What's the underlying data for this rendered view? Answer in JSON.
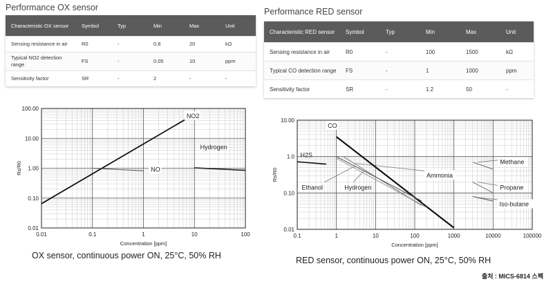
{
  "ox_section": {
    "title": "Performance OX sensor",
    "columns": [
      "Characteristic OX sensor",
      "Symbol",
      "Typ",
      "Min",
      "Max",
      "Unit"
    ],
    "rows": [
      [
        "Sensing resistance in air",
        "R0",
        "-",
        "0.8",
        "20",
        "kΩ"
      ],
      [
        "Typical NO2 detection range",
        "FS",
        "-",
        "0.05",
        "10",
        "ppm"
      ],
      [
        "Sensitivity factor",
        "SR",
        "-",
        "2",
        "-",
        "-"
      ]
    ]
  },
  "red_section": {
    "title": "Performance RED sensor",
    "columns": [
      "Characteristic RED sensor",
      "Symbol",
      "Typ",
      "Min",
      "Max",
      "Unit"
    ],
    "rows": [
      [
        "Sensing resistance in air",
        "R0",
        "-",
        "100",
        "1500",
        "kΩ"
      ],
      [
        "Typical CO detection range",
        "FS",
        "-",
        "1",
        "1000",
        "ppm"
      ],
      [
        "Sensitivity factor",
        "SR",
        "-",
        "1.2",
        "50",
        "-"
      ]
    ]
  },
  "chart_data": [
    {
      "type": "line",
      "title": "OX sensor, continuous power ON, 25°C, 50% RH",
      "xlabel": "Concentration [ppm]",
      "ylabel": "Rs/R0",
      "xscale": "log",
      "yscale": "log",
      "xlim": [
        0.01,
        100
      ],
      "ylim": [
        0.01,
        100
      ],
      "xticks": [
        "0.01",
        "0.1",
        "1",
        "10",
        "100"
      ],
      "yticks": [
        "0.01",
        "0.10",
        "1.00",
        "10.00",
        "100.00"
      ],
      "grid": true,
      "series": [
        {
          "name": "NO2",
          "x": [
            0.01,
            6.5
          ],
          "y": [
            0.065,
            42
          ],
          "stroke": "#111111",
          "width": 1.8
        },
        {
          "name": "NO",
          "x": [
            0.1,
            1.0
          ],
          "y": [
            1.0,
            0.82
          ],
          "stroke": "#555555",
          "width": 1.0
        },
        {
          "name": "Hydrogen",
          "x": [
            10,
            100
          ],
          "y": [
            1.03,
            0.85
          ],
          "stroke": "#222222",
          "width": 1.6
        }
      ],
      "labels": [
        {
          "text": "NO2",
          "x": 7.0,
          "y": 50,
          "boxed": true
        },
        {
          "text": "Hydrogen",
          "x": 13,
          "y": 4.5,
          "boxed": false
        },
        {
          "text": "NO",
          "x": 1.4,
          "y": 0.8,
          "boxed": true
        }
      ]
    },
    {
      "type": "line",
      "title": "RED sensor, continuous power ON, 25°C, 50% RH",
      "xlabel": "Concentration [ppm]",
      "ylabel": "Rs/R0",
      "xscale": "log",
      "yscale": "log",
      "xlim": [
        0.1,
        100000
      ],
      "ylim": [
        0.01,
        10
      ],
      "xticks": [
        "0.1",
        "1",
        "10",
        "100",
        "1000",
        "10000",
        "100000"
      ],
      "yticks": [
        "0.01",
        "0.10",
        "1.0",
        "10.00"
      ],
      "grid": true,
      "series": [
        {
          "name": "CO",
          "x": [
            1,
            1000
          ],
          "y": [
            3.5,
            0.011
          ],
          "stroke": "#111111",
          "width": 2.2
        },
        {
          "name": "H2S",
          "x": [
            0.1,
            0.55
          ],
          "y": [
            0.72,
            0.62
          ],
          "stroke": "#111111",
          "width": 1.6
        },
        {
          "name": "Ethanol",
          "x": [
            1,
            200
          ],
          "y": [
            0.9,
            0.04
          ],
          "stroke": "#999999",
          "width": 1.0
        },
        {
          "name": "Hydrogen",
          "x": [
            1.5,
            150
          ],
          "y": [
            1.0,
            0.045
          ],
          "stroke": "#777777",
          "width": 1.0
        },
        {
          "name": "Ammonia",
          "x": [
            1,
            150
          ],
          "y": [
            1.0,
            0.06
          ],
          "stroke": "#555555",
          "width": 1.0
        },
        {
          "name": "Methane",
          "x": [
            3000,
            10000
          ],
          "y": [
            0.7,
            0.45
          ],
          "stroke": "#666666",
          "width": 1.0
        },
        {
          "name": "Propane",
          "x": [
            3000,
            10000
          ],
          "y": [
            0.2,
            0.1
          ],
          "stroke": "#777777",
          "width": 1.0
        },
        {
          "name": "Iso-butane",
          "x": [
            3000,
            10000
          ],
          "y": [
            0.08,
            0.06
          ],
          "stroke": "#555555",
          "width": 1.0
        }
      ],
      "labels": [
        {
          "text": "CO",
          "x": 0.6,
          "y": 6.5,
          "boxed": true
        },
        {
          "text": "H2S",
          "x": 0.12,
          "y": 1.0,
          "boxed": false
        },
        {
          "text": "Ethanol",
          "x": 0.13,
          "y": 0.13,
          "boxed": false
        },
        {
          "text": "Hydrogen",
          "x": 1.6,
          "y": 0.13,
          "boxed": false
        },
        {
          "text": "Ammonia",
          "x": 200,
          "y": 0.28,
          "boxed": true
        },
        {
          "text": "Methane",
          "x": 15000,
          "y": 0.65,
          "boxed": true
        },
        {
          "text": "Propane",
          "x": 15000,
          "y": 0.13,
          "boxed": true
        },
        {
          "text": "Iso-butane",
          "x": 14500,
          "y": 0.045,
          "boxed": true
        }
      ],
      "leaders": [
        {
          "label": "Ammonia",
          "from": [
            200,
            0.4
          ],
          "to": [
            3,
            0.65
          ]
        },
        {
          "label": "Hydrogen",
          "from": [
            2.7,
            0.2
          ],
          "to": [
            5,
            0.4
          ]
        },
        {
          "label": "Ethanol",
          "from": [
            0.5,
            0.2
          ],
          "to": [
            3,
            0.55
          ]
        },
        {
          "label": "Methane",
          "from": [
            14000,
            0.8
          ],
          "to": [
            4000,
            0.7
          ]
        },
        {
          "label": "Propane",
          "from": [
            14000,
            0.16
          ],
          "to": [
            4000,
            0.2
          ]
        },
        {
          "label": "Iso-butane",
          "from": [
            14000,
            0.065
          ],
          "to": [
            4000,
            0.075
          ]
        }
      ]
    }
  ],
  "source": "출처 : MICS-6814 스펙"
}
